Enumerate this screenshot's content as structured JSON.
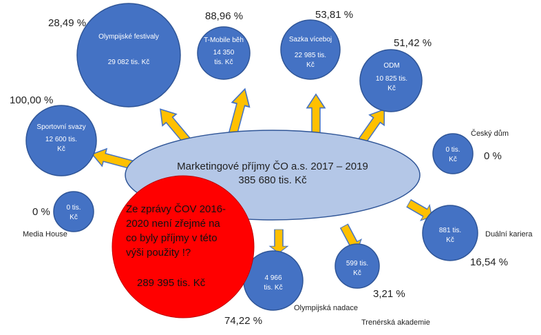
{
  "center": {
    "title": "Marketingové příjmy ČO a.s. 2017  – 2019",
    "total": "385 680 tis. Kč"
  },
  "red_note": {
    "line1": "Ze zprávy ČOV 2016-",
    "line2": "2020 není zřejmé na",
    "line3": "co byly příjmy v této",
    "line4": "výši použity !?",
    "amount": "289 395  tis. Kč"
  },
  "items": {
    "olympijske_festivaly": {
      "name": "Olympijské festivaly",
      "amount": "29 082 tis. Kč",
      "pct": "28,49 %"
    },
    "tmobile_beh": {
      "name": "T-Mobile běh",
      "amount_l1": "14 350",
      "amount_l2": "tis. Kč",
      "pct": "88,96 %"
    },
    "sazka_viceboj": {
      "name": "Sazka víceboj",
      "amount_l1": "22 985 tis.",
      "amount_l2": "Kč",
      "pct": "53,81 %"
    },
    "odm": {
      "name": "ODM",
      "amount_l1": "10 825 tis.",
      "amount_l2": "Kč",
      "pct": "51,42 %"
    },
    "sportovni_svazy": {
      "name": "Sportovní svazy",
      "amount_l1": "12 600 tis.",
      "amount_l2": "Kč",
      "pct": "100,00 %"
    },
    "cesky_dum": {
      "name": "Český dům",
      "amount_l1": "0 tis.",
      "amount_l2": "Kč",
      "pct": "0 %"
    },
    "media_house": {
      "name": "Media House",
      "amount_l1": "0 tis.",
      "amount_l2": "Kč",
      "pct": "0 %"
    },
    "dualni_kariera": {
      "name": "Duální kariera",
      "amount_l1": "881 tis.",
      "amount_l2": "Kč",
      "pct": "16,54 %"
    },
    "olympijska_nadace": {
      "name": "Olympijská nadace",
      "amount_l1": "4 966",
      "amount_l2": "tis. Kč",
      "pct": "74,22 %"
    },
    "trenerska_akademie": {
      "name": "Trenérská akademie",
      "amount_l1": "599 tis.",
      "amount_l2": "Kč",
      "pct": "3,21 %"
    }
  },
  "colors": {
    "circle_fill": "#4472c4",
    "circle_stroke": "#2f5597",
    "ellipse_fill": "#b4c7e7",
    "ellipse_stroke": "#2f5597",
    "red_fill": "#ff0000",
    "arrow_fill": "#ffc000",
    "arrow_stroke": "#4472c4"
  }
}
